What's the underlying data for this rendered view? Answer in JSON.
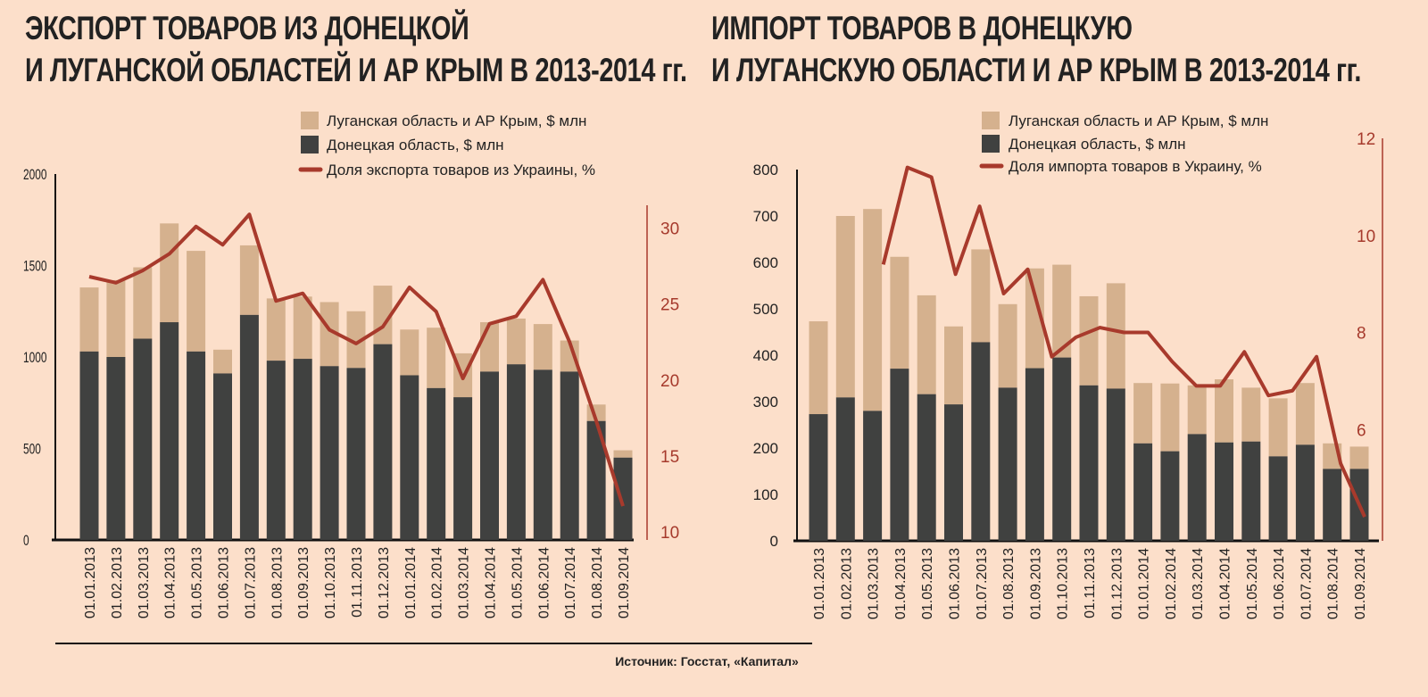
{
  "source": "Источник: Госстат, «Капитал»",
  "colors": {
    "luhansk": "#d5b18e",
    "donetsk": "#404140",
    "line": "#a83a2c",
    "background": "#fcdfca"
  },
  "chart_data": [
    {
      "type": "bar",
      "stacked": true,
      "title": [
        "ЭКСПОРТ ТОВАРОВ ИЗ ДОНЕЦКОЙ",
        "И ЛУГАНСКОЙ ОБЛАСТЕЙ И АР КРЫМ В 2013-2014 гг."
      ],
      "categories": [
        "01.01.2013",
        "01.02.2013",
        "01.03.2013",
        "01.04.2013",
        "01.05.2013",
        "01.06.2013",
        "01.07.2013",
        "01.08.2013",
        "01.09.2013",
        "01.10.2013",
        "01.11.2013",
        "01.12.2013",
        "01.01.2014",
        "01.02.2014",
        "01.03.2014",
        "01.04.2014",
        "01.05.2014",
        "01.06.2014",
        "01.07.2014",
        "01.08.2014",
        "01.09.2014"
      ],
      "series": [
        {
          "name": "Донецкая область, $ млн",
          "axis": "left",
          "values": [
            1030,
            1000,
            1100,
            1190,
            1030,
            910,
            1230,
            980,
            990,
            950,
            940,
            1070,
            900,
            830,
            780,
            920,
            960,
            930,
            920,
            650,
            450
          ]
        },
        {
          "name": "Луганская область и АР Крым, $ млн",
          "axis": "left",
          "values": [
            350,
            420,
            390,
            540,
            550,
            130,
            380,
            340,
            340,
            350,
            310,
            320,
            250,
            330,
            240,
            270,
            250,
            250,
            170,
            90,
            40
          ]
        },
        {
          "name": "Доля экспорта товаров из Украины, %",
          "axis": "right",
          "type": "line",
          "values": [
            26.8,
            26.4,
            27.2,
            28.3,
            30.1,
            28.9,
            30.9,
            25.2,
            25.7,
            23.3,
            22.4,
            23.5,
            26.1,
            24.5,
            20.1,
            23.7,
            24.2,
            26.6,
            22.5,
            17.3,
            11.7
          ]
        }
      ],
      "legend": [
        "Луганская область и АР Крым, $ млн",
        "Донецкая область, $ млн",
        "Доля экспорта товаров из Украины, %"
      ],
      "ylim": [
        0,
        2000
      ],
      "yticks": [
        "0",
        "500",
        "1000",
        "1500",
        "2000"
      ],
      "y2lim": [
        10,
        31.5
      ],
      "y2ticks": [
        "10",
        "15",
        "20",
        "25",
        "30"
      ]
    },
    {
      "type": "bar",
      "stacked": true,
      "title": [
        "ИМПОРТ ТОВАРОВ В ДОНЕЦКУЮ",
        "И ЛУГАНСКУЮ ОБЛАСТИ И АР КРЫМ В 2013-2014 гг."
      ],
      "categories": [
        "01.01.2013",
        "01.02.2013",
        "01.03.2013",
        "01.04.2013",
        "01.05.2013",
        "01.06.2013",
        "01.07.2013",
        "01.08.2013",
        "01.09.2013",
        "01.10.2013",
        "01.11.2013",
        "01.12.2013",
        "01.01.2014",
        "01.02.2014",
        "01.03.2014",
        "01.04.2014",
        "01.05.2014",
        "01.06.2014",
        "01.07.2014",
        "01.08.2014",
        "01.09.2014"
      ],
      "series": [
        {
          "name": "Донецкая область, $ млн",
          "axis": "left",
          "values": [
            273,
            309,
            280,
            371,
            316,
            294,
            428,
            330,
            372,
            395,
            335,
            328,
            210,
            193,
            230,
            212,
            214,
            182,
            207,
            155,
            155
          ]
        },
        {
          "name": "Луганская область и АР Крым, $ млн",
          "axis": "left",
          "values": [
            200,
            391,
            435,
            241,
            213,
            168,
            200,
            180,
            215,
            200,
            192,
            227,
            130,
            146,
            105,
            136,
            116,
            125,
            133,
            55,
            48
          ]
        },
        {
          "name": "Доля импорта товаров в Украину, %",
          "axis": "right",
          "type": "line",
          "values": [
            9.4,
            11.4,
            11.2,
            9.2,
            10.6,
            8.8,
            9.3,
            7.5,
            7.9,
            8.1,
            8.0,
            8.0,
            7.4,
            6.9,
            6.9,
            7.6,
            6.7,
            6.8,
            7.5,
            5.3,
            4.2
          ]
        }
      ],
      "legend": [
        "Луганская область и АР Крым, $ млн",
        "Донецкая область, $ млн",
        "Доля импорта товаров в Украину, %"
      ],
      "ylim": [
        0,
        800
      ],
      "yticks": [
        "0",
        "100",
        "200",
        "300",
        "400",
        "500",
        "600",
        "700",
        "800"
      ],
      "y2lim": [
        4,
        12
      ],
      "y2ticks": [
        "4",
        "6",
        "8",
        "10",
        "12"
      ]
    }
  ]
}
